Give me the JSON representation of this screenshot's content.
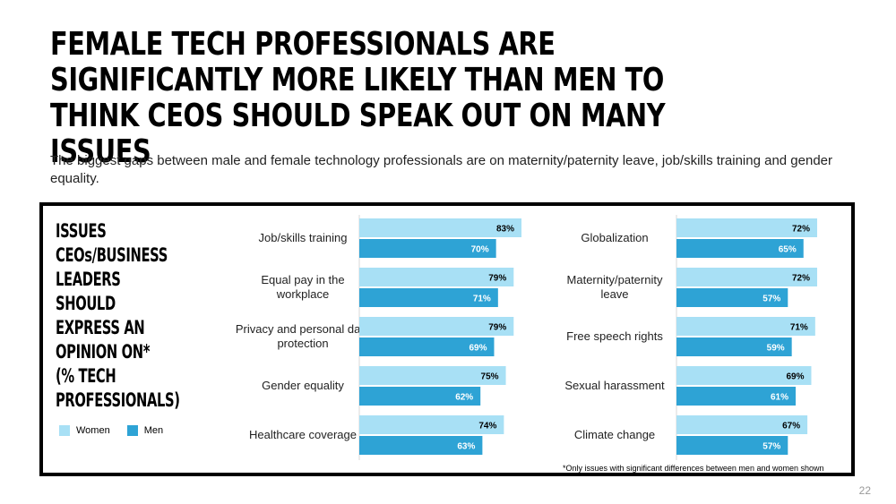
{
  "title": "FEMALE TECH PROFESSIONALS ARE SIGNIFICANTLY MORE LIKELY THAN MEN TO THINK CEOs SHOULD SPEAK OUT ON MANY ISSUES",
  "subtitle": "The biggest gaps between male and female technology professionals are on maternity/paternity leave, job/skills training and gender equality.",
  "side_heading": "ISSUES\nCEOs/BUSINESS\nLEADERS SHOULD\nEXPRESS AN\nOPINION ON*\n(% TECH\nPROFESSIONALS)",
  "legend": [
    {
      "label": "Women",
      "color": "#a8e0f5"
    },
    {
      "label": "Men",
      "color": "#2ea3d5"
    }
  ],
  "note": "*Only issues with significant differences between men and women shown",
  "page_number": "22",
  "colors": {
    "women": "#a8e0f5",
    "men": "#2ea3d5"
  },
  "chart_data": [
    {
      "type": "bar",
      "orientation": "horizontal",
      "categories": [
        "Job/skills training",
        "Equal pay in the workplace",
        "Privacy and personal data protection",
        "Gender equality",
        "Healthcare coverage"
      ],
      "category_lines": [
        [
          "Job/skills training"
        ],
        [
          "Equal pay in the",
          "workplace"
        ],
        [
          "Privacy and personal data",
          "protection"
        ],
        [
          "Gender equality"
        ],
        [
          "Healthcare coverage"
        ]
      ],
      "series": [
        {
          "name": "Women",
          "values": [
            83,
            79,
            79,
            75,
            74
          ],
          "labels": [
            "83%",
            "79%",
            "79%",
            "75%",
            "74%"
          ]
        },
        {
          "name": "Men",
          "values": [
            70,
            71,
            69,
            62,
            63
          ],
          "labels": [
            "70%",
            "71%",
            "69%",
            "62%",
            "63%"
          ]
        }
      ],
      "xlim": [
        0,
        100
      ]
    },
    {
      "type": "bar",
      "orientation": "horizontal",
      "categories": [
        "Globalization",
        "Maternity/paternity leave",
        "Free speech rights",
        "Sexual harassment",
        "Climate change"
      ],
      "category_lines": [
        [
          "Globalization"
        ],
        [
          "Maternity/paternity",
          "leave"
        ],
        [
          "Free speech rights"
        ],
        [
          "Sexual harassment"
        ],
        [
          "Climate change"
        ]
      ],
      "series": [
        {
          "name": "Women",
          "values": [
            72,
            72,
            71,
            69,
            67
          ],
          "labels": [
            "72%",
            "72%",
            "71%",
            "69%",
            "67%"
          ]
        },
        {
          "name": "Men",
          "values": [
            65,
            57,
            59,
            61,
            57
          ],
          "labels": [
            "65%",
            "57%",
            "59%",
            "61%",
            "57%"
          ]
        }
      ],
      "xlim": [
        0,
        100
      ]
    }
  ]
}
